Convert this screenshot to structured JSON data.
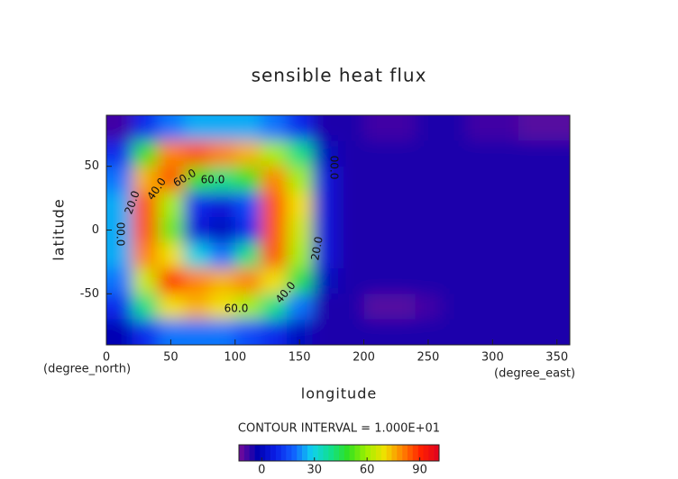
{
  "chart_data": {
    "type": "contour",
    "title": "sensible heat flux",
    "xlabel": "longitude",
    "ylabel": "latitude",
    "x_units": "(degree_east)",
    "y_units": "(degree_north)",
    "note": "CONTOUR INTERVAL = 1.000E+01",
    "xlim": [
      0,
      360
    ],
    "ylim": [
      -90,
      90
    ],
    "xticks": [
      0,
      50,
      100,
      150,
      200,
      250,
      300,
      350
    ],
    "yticks": [
      -50,
      0,
      50
    ],
    "x": [
      10,
      30,
      50,
      70,
      90,
      110,
      130,
      150,
      170,
      190,
      210,
      230,
      250,
      270,
      290,
      310,
      330,
      350
    ],
    "y": [
      80,
      60,
      40,
      20,
      0,
      -20,
      -40,
      -60,
      -80
    ],
    "z": [
      [
        -8,
        10,
        20,
        25,
        25,
        25,
        20,
        10,
        -5,
        -5,
        -8,
        -8,
        -5,
        -5,
        -8,
        -8,
        -10,
        -10
      ],
      [
        10,
        50,
        80,
        85,
        80,
        75,
        60,
        40,
        0,
        -5,
        -5,
        -5,
        -5,
        -5,
        -5,
        -5,
        -5,
        -5
      ],
      [
        20,
        75,
        85,
        50,
        40,
        50,
        80,
        60,
        5,
        -5,
        -5,
        -5,
        -5,
        -5,
        -5,
        -5,
        -5,
        -5
      ],
      [
        25,
        85,
        60,
        10,
        5,
        15,
        85,
        70,
        5,
        -5,
        -5,
        -5,
        -5,
        -5,
        -5,
        -5,
        -5,
        -5
      ],
      [
        25,
        85,
        55,
        5,
        0,
        10,
        85,
        65,
        5,
        -5,
        -5,
        -5,
        -5,
        -5,
        -5,
        -5,
        -5,
        -5
      ],
      [
        25,
        80,
        70,
        30,
        20,
        40,
        85,
        60,
        5,
        -5,
        -5,
        -5,
        -5,
        -5,
        -5,
        -5,
        -5,
        -5
      ],
      [
        20,
        65,
        90,
        80,
        75,
        80,
        70,
        45,
        0,
        -5,
        -5,
        -5,
        -5,
        -5,
        -5,
        -5,
        -5,
        -5
      ],
      [
        10,
        40,
        70,
        75,
        70,
        60,
        40,
        20,
        -5,
        -5,
        -10,
        -10,
        -8,
        -5,
        -5,
        -5,
        -5,
        -5
      ],
      [
        -2,
        10,
        20,
        20,
        20,
        15,
        10,
        0,
        -5,
        -5,
        -5,
        -5,
        -5,
        -5,
        -5,
        -5,
        -5,
        -5
      ]
    ],
    "clim": [
      -13,
      101
    ],
    "colormap": [
      "#7a0a9a",
      "#0000b0",
      "#0a1ee6",
      "#1060ff",
      "#10d0f0",
      "#10e090",
      "#30e020",
      "#a0f000",
      "#f0e000",
      "#ff8000",
      "#ff2000",
      "#e00020"
    ],
    "cticks": [
      0,
      30,
      60,
      90
    ],
    "contour_labels": [
      {
        "value": 20,
        "label": "20.0"
      },
      {
        "value": 40,
        "label": "40.0"
      },
      {
        "value": 60,
        "label": "60.0"
      },
      {
        "value": 60,
        "label": "60.0"
      },
      {
        "value": 20,
        "label": "20.0"
      },
      {
        "value": 40,
        "label": "40.0"
      },
      {
        "value": 60,
        "label": "60.0"
      },
      {
        "value": 0,
        "label": "00.0"
      },
      {
        "value": 0,
        "label": "00.0"
      }
    ]
  }
}
